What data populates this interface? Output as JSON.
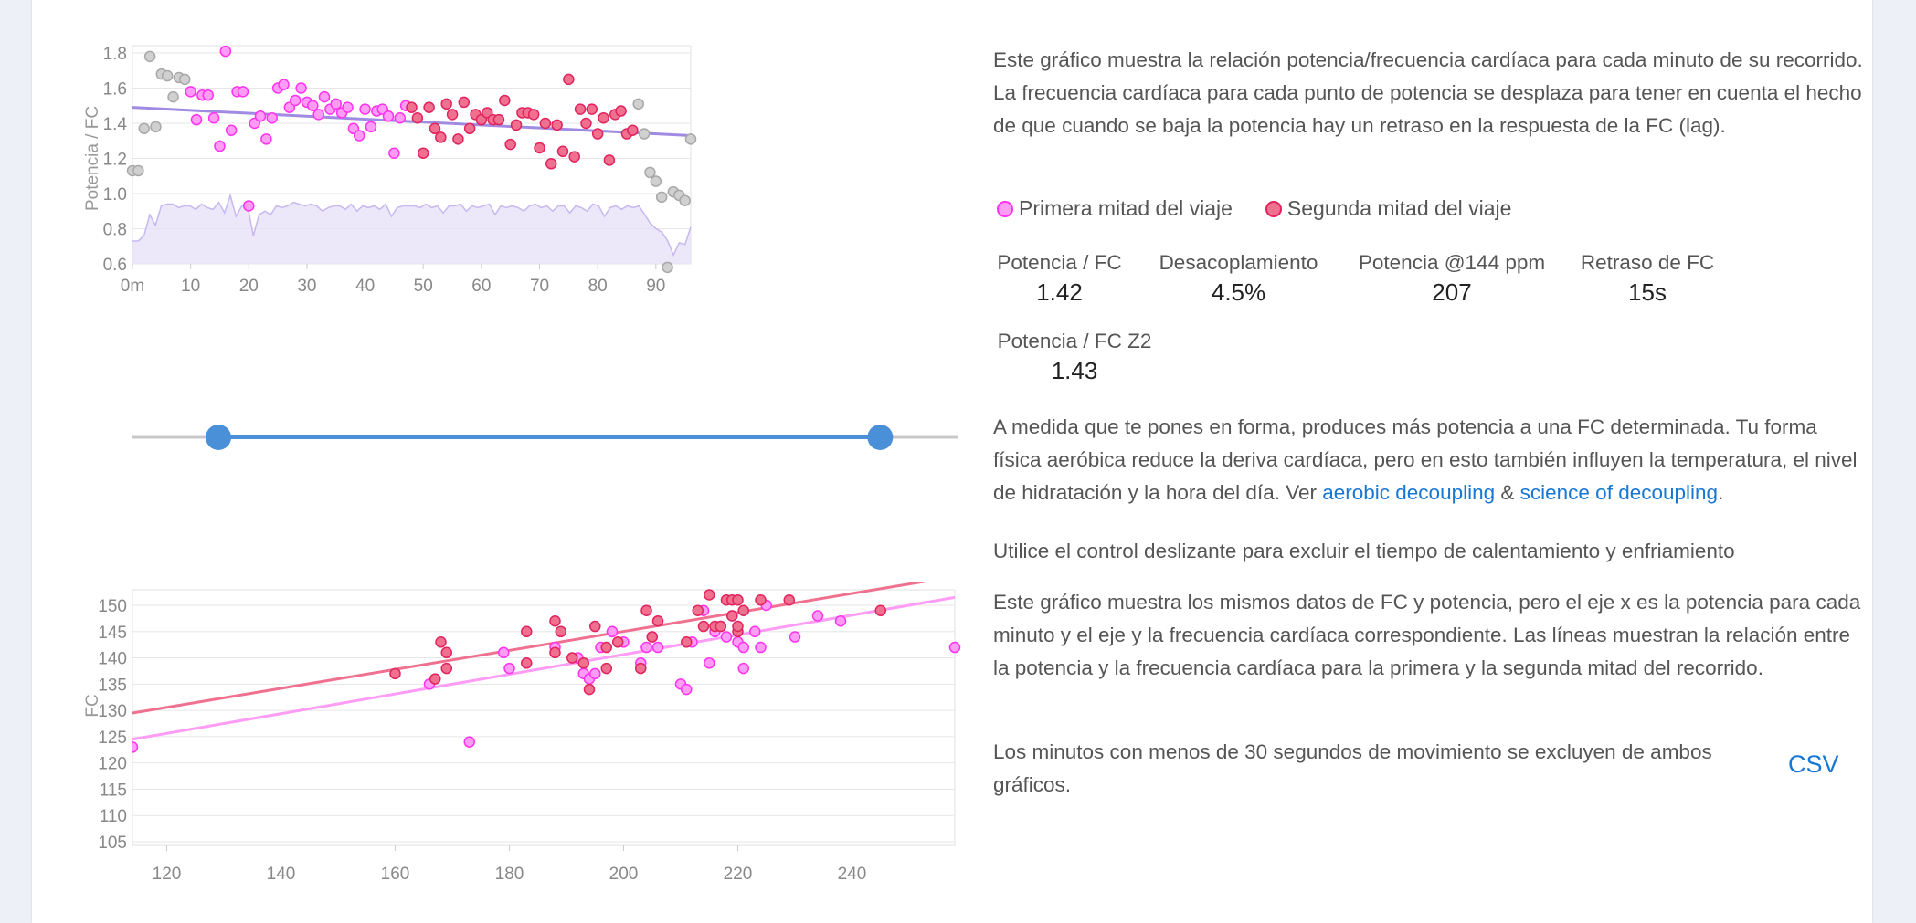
{
  "colors": {
    "first_half": "#ff33ee",
    "first_half_fill": "#ff9cf5",
    "second_half": "#e0245e",
    "second_half_fill": "#f07090",
    "excluded": "#bbbbbb",
    "trend_top": "#a18be2",
    "area_fill": "#e6e0f7",
    "area_line": "#c7b8ef",
    "slider": "#4a90d9",
    "link": "#1877d2"
  },
  "chart_data": [
    {
      "type": "scatter",
      "id": "ratio_over_time",
      "title": "",
      "xlabel": "",
      "ylabel": "Potencia / FC",
      "xlim": [
        0,
        96
      ],
      "ylim": [
        0.6,
        1.8
      ],
      "x_ticks": [
        {
          "v": 0,
          "label": "0m"
        },
        {
          "v": 10,
          "label": "10"
        },
        {
          "v": 20,
          "label": "20"
        },
        {
          "v": 30,
          "label": "30"
        },
        {
          "v": 40,
          "label": "40"
        },
        {
          "v": 50,
          "label": "50"
        },
        {
          "v": 60,
          "label": "60"
        },
        {
          "v": 70,
          "label": "70"
        },
        {
          "v": 80,
          "label": "80"
        },
        {
          "v": 90,
          "label": "90"
        }
      ],
      "y_ticks": [
        {
          "v": 0.6,
          "label": "0.6"
        },
        {
          "v": 0.8,
          "label": "0.8"
        },
        {
          "v": 1.0,
          "label": "1.0"
        },
        {
          "v": 1.2,
          "label": "1.2"
        },
        {
          "v": 1.4,
          "label": "1.4"
        },
        {
          "v": 1.6,
          "label": "1.6"
        },
        {
          "v": 1.8,
          "label": "1.8"
        }
      ],
      "grid": true,
      "series": [
        {
          "name": "excluded",
          "points": [
            [
              0,
              1.13
            ],
            [
              1,
              1.13
            ],
            [
              2,
              1.37
            ],
            [
              3,
              1.78
            ],
            [
              4,
              1.38
            ],
            [
              5,
              1.68
            ],
            [
              6,
              1.67
            ],
            [
              7,
              1.55
            ],
            [
              8,
              1.66
            ],
            [
              9,
              1.65
            ],
            [
              87,
              1.51
            ],
            [
              88,
              1.34
            ],
            [
              89,
              1.12
            ],
            [
              90,
              1.07
            ],
            [
              91,
              0.98
            ],
            [
              92,
              0.58
            ],
            [
              93,
              1.01
            ],
            [
              94,
              0.99
            ],
            [
              95,
              0.96
            ],
            [
              96,
              1.31
            ]
          ]
        },
        {
          "name": "Primera mitad del viaje",
          "points": [
            [
              10,
              1.58
            ],
            [
              11,
              1.42
            ],
            [
              12,
              1.56
            ],
            [
              13,
              1.56
            ],
            [
              14,
              1.43
            ],
            [
              15,
              1.27
            ],
            [
              16,
              1.81
            ],
            [
              17,
              1.36
            ],
            [
              18,
              1.58
            ],
            [
              19,
              1.58
            ],
            [
              20,
              0.93
            ],
            [
              21,
              1.4
            ],
            [
              22,
              1.44
            ],
            [
              23,
              1.31
            ],
            [
              24,
              1.43
            ],
            [
              25,
              1.6
            ],
            [
              26,
              1.62
            ],
            [
              27,
              1.49
            ],
            [
              28,
              1.53
            ],
            [
              29,
              1.6
            ],
            [
              30,
              1.52
            ],
            [
              31,
              1.5
            ],
            [
              32,
              1.45
            ],
            [
              33,
              1.55
            ],
            [
              34,
              1.48
            ],
            [
              35,
              1.51
            ],
            [
              36,
              1.46
            ],
            [
              37,
              1.49
            ],
            [
              38,
              1.37
            ],
            [
              39,
              1.33
            ],
            [
              40,
              1.48
            ],
            [
              41,
              1.38
            ],
            [
              42,
              1.47
            ],
            [
              43,
              1.48
            ],
            [
              44,
              1.44
            ],
            [
              45,
              1.23
            ],
            [
              46,
              1.43
            ],
            [
              47,
              1.5
            ]
          ]
        },
        {
          "name": "Segunda mitad del viaje",
          "points": [
            [
              48,
              1.49
            ],
            [
              49,
              1.43
            ],
            [
              50,
              1.23
            ],
            [
              51,
              1.49
            ],
            [
              52,
              1.37
            ],
            [
              53,
              1.32
            ],
            [
              54,
              1.51
            ],
            [
              55,
              1.45
            ],
            [
              56,
              1.31
            ],
            [
              57,
              1.52
            ],
            [
              58,
              1.37
            ],
            [
              59,
              1.45
            ],
            [
              60,
              1.42
            ],
            [
              61,
              1.46
            ],
            [
              62,
              1.42
            ],
            [
              63,
              1.42
            ],
            [
              64,
              1.53
            ],
            [
              65,
              1.28
            ],
            [
              66,
              1.39
            ],
            [
              67,
              1.46
            ],
            [
              68,
              1.46
            ],
            [
              69,
              1.45
            ],
            [
              70,
              1.26
            ],
            [
              71,
              1.4
            ],
            [
              72,
              1.17
            ],
            [
              73,
              1.39
            ],
            [
              74,
              1.24
            ],
            [
              75,
              1.65
            ],
            [
              76,
              1.21
            ],
            [
              77,
              1.48
            ],
            [
              78,
              1.4
            ],
            [
              79,
              1.48
            ],
            [
              80,
              1.34
            ],
            [
              81,
              1.43
            ],
            [
              82,
              1.19
            ],
            [
              83,
              1.45
            ],
            [
              84,
              1.47
            ],
            [
              85,
              1.34
            ],
            [
              86,
              1.36
            ]
          ]
        }
      ],
      "trend_line": [
        [
          0,
          1.49
        ],
        [
          96,
          1.33
        ]
      ],
      "area_series": [
        0.73,
        0.73,
        0.76,
        0.88,
        0.82,
        0.93,
        0.94,
        0.94,
        0.92,
        0.93,
        0.93,
        0.91,
        0.94,
        0.92,
        0.91,
        0.95,
        0.89,
        0.99,
        0.87,
        0.93,
        0.93,
        0.76,
        0.88,
        0.9,
        0.88,
        0.93,
        0.92,
        0.93,
        0.95,
        0.94,
        0.93,
        0.94,
        0.93,
        0.9,
        0.92,
        0.93,
        0.93,
        0.91,
        0.94,
        0.9,
        0.93,
        0.92,
        0.93,
        0.91,
        0.94,
        0.87,
        0.92,
        0.93,
        0.93,
        0.93,
        0.92,
        0.94,
        0.92,
        0.93,
        0.89,
        0.93,
        0.93,
        0.94,
        0.9,
        0.93,
        0.92,
        0.93,
        0.94,
        0.88,
        0.93,
        0.92,
        0.93,
        0.92,
        0.9,
        0.93,
        0.94,
        0.92,
        0.93,
        0.9,
        0.93,
        0.93,
        0.89,
        0.93,
        0.92,
        0.9,
        0.94,
        0.93,
        0.87,
        0.92,
        0.93,
        0.91,
        0.93,
        0.92,
        0.93,
        0.88,
        0.83,
        0.8,
        0.78,
        0.73,
        0.65,
        0.72,
        0.71,
        0.81
      ]
    },
    {
      "type": "scatter",
      "id": "hr_vs_power",
      "title": "",
      "xlabel": "",
      "ylabel": "FC",
      "xlim": [
        114,
        258
      ],
      "ylim": [
        104,
        152
      ],
      "x_ticks": [
        {
          "v": 120,
          "label": "120"
        },
        {
          "v": 140,
          "label": "140"
        },
        {
          "v": 160,
          "label": "160"
        },
        {
          "v": 180,
          "label": "180"
        },
        {
          "v": 200,
          "label": "200"
        },
        {
          "v": 220,
          "label": "220"
        },
        {
          "v": 240,
          "label": "240"
        }
      ],
      "y_ticks": [
        {
          "v": 105,
          "label": "105"
        },
        {
          "v": 110,
          "label": "110"
        },
        {
          "v": 115,
          "label": "115"
        },
        {
          "v": 120,
          "label": "120"
        },
        {
          "v": 125,
          "label": "125"
        },
        {
          "v": 130,
          "label": "130"
        },
        {
          "v": 135,
          "label": "135"
        },
        {
          "v": 140,
          "label": "140"
        },
        {
          "v": 145,
          "label": "145"
        },
        {
          "v": 150,
          "label": "150"
        }
      ],
      "grid": true,
      "series": [
        {
          "name": "Primera mitad del viaje",
          "points": [
            [
              114,
              123
            ],
            [
              166,
              135
            ],
            [
              173,
              124
            ],
            [
              179,
              141
            ],
            [
              180,
              138
            ],
            [
              188,
              142
            ],
            [
              192,
              140
            ],
            [
              193,
              137
            ],
            [
              194,
              136
            ],
            [
              195,
              137
            ],
            [
              196,
              142
            ],
            [
              198,
              145
            ],
            [
              200,
              143
            ],
            [
              203,
              139
            ],
            [
              204,
              142
            ],
            [
              205,
              144
            ],
            [
              206,
              142
            ],
            [
              210,
              135
            ],
            [
              211,
              134
            ],
            [
              212,
              143
            ],
            [
              214,
              149
            ],
            [
              215,
              139
            ],
            [
              216,
              145
            ],
            [
              217,
              146
            ],
            [
              218,
              144
            ],
            [
              219,
              148
            ],
            [
              220,
              143
            ],
            [
              221,
              142
            ],
            [
              221,
              138
            ],
            [
              223,
              145
            ],
            [
              224,
              142
            ],
            [
              225,
              150
            ],
            [
              230,
              144
            ],
            [
              234,
              148
            ],
            [
              238,
              147
            ],
            [
              258,
              142
            ]
          ]
        },
        {
          "name": "Segunda mitad del viaje",
          "points": [
            [
              160,
              137
            ],
            [
              167,
              136
            ],
            [
              168,
              143
            ],
            [
              169,
              141
            ],
            [
              169,
              138
            ],
            [
              183,
              145
            ],
            [
              183,
              139
            ],
            [
              188,
              141
            ],
            [
              188,
              147
            ],
            [
              189,
              145
            ],
            [
              191,
              140
            ],
            [
              193,
              139
            ],
            [
              194,
              134
            ],
            [
              195,
              146
            ],
            [
              197,
              142
            ],
            [
              197,
              138
            ],
            [
              199,
              143
            ],
            [
              203,
              138
            ],
            [
              204,
              149
            ],
            [
              205,
              144
            ],
            [
              206,
              147
            ],
            [
              211,
              143
            ],
            [
              213,
              149
            ],
            [
              214,
              146
            ],
            [
              215,
              152
            ],
            [
              216,
              146
            ],
            [
              217,
              146
            ],
            [
              218,
              151
            ],
            [
              219,
              148
            ],
            [
              219,
              151
            ],
            [
              220,
              145
            ],
            [
              220,
              146
            ],
            [
              220,
              151
            ],
            [
              221,
              149
            ],
            [
              224,
              151
            ],
            [
              229,
              151
            ],
            [
              245,
              149
            ]
          ]
        }
      ],
      "trend_lines": [
        {
          "name": "Segunda mitad del viaje",
          "from": [
            114,
            129.5
          ],
          "to": [
            258,
            155.5
          ]
        },
        {
          "name": "Primera mitad del viaje",
          "from": [
            114,
            124.5
          ],
          "to": [
            258,
            151.5
          ]
        }
      ]
    }
  ],
  "slider": {
    "min": 0,
    "max": 96,
    "low": 10,
    "high": 87
  },
  "text": {
    "intro": "Este gráfico muestra la relación potencia/frecuencia cardíaca para cada minuto de su recorrido. La frecuencia cardíaca para cada punto de potencia se desplaza para tener en cuenta el hecho de que cuando se baja la potencia hay un retraso en la respuesta de la FC (lag).",
    "legend_first": "Primera mitad del viaje",
    "legend_second": "Segunda mitad del viaje",
    "fitness_before": "A medida que te pones en forma, produces más potencia a una FC determinada. Tu forma física aeróbica reduce la deriva cardíaca, pero en esto también influyen la temperatura, el nivel de hidratación y la hora del día. Ver ",
    "link_aerobic": "aerobic decoupling",
    "amp": " & ",
    "link_science": "science of decoupling",
    "period": ".",
    "slider_hint": "Utilice el control deslizante para excluir el tiempo de calentamiento y enfriamiento",
    "second_chart_desc": "Este gráfico muestra los mismos datos de FC y potencia, pero el eje x es la potencia para cada minuto y el eje y la frecuencia cardíaca correspondiente. Las líneas muestran la relación entre la potencia y la frecuencia cardíaca para la primera y la segunda mitad del recorrido.",
    "exclusion_note": "Los minutos con menos de 30 segundos de movimiento se excluyen de ambos gráficos.",
    "csv": "CSV"
  },
  "stats": [
    {
      "label": "Potencia / FC",
      "value": "1.42"
    },
    {
      "label": "Desacoplamiento",
      "value": "4.5%"
    },
    {
      "label": "Potencia @144 ppm",
      "value": "207"
    },
    {
      "label": "Retraso de FC",
      "value": "15s"
    },
    {
      "label": "Potencia / FC Z2",
      "value": "1.43"
    }
  ]
}
